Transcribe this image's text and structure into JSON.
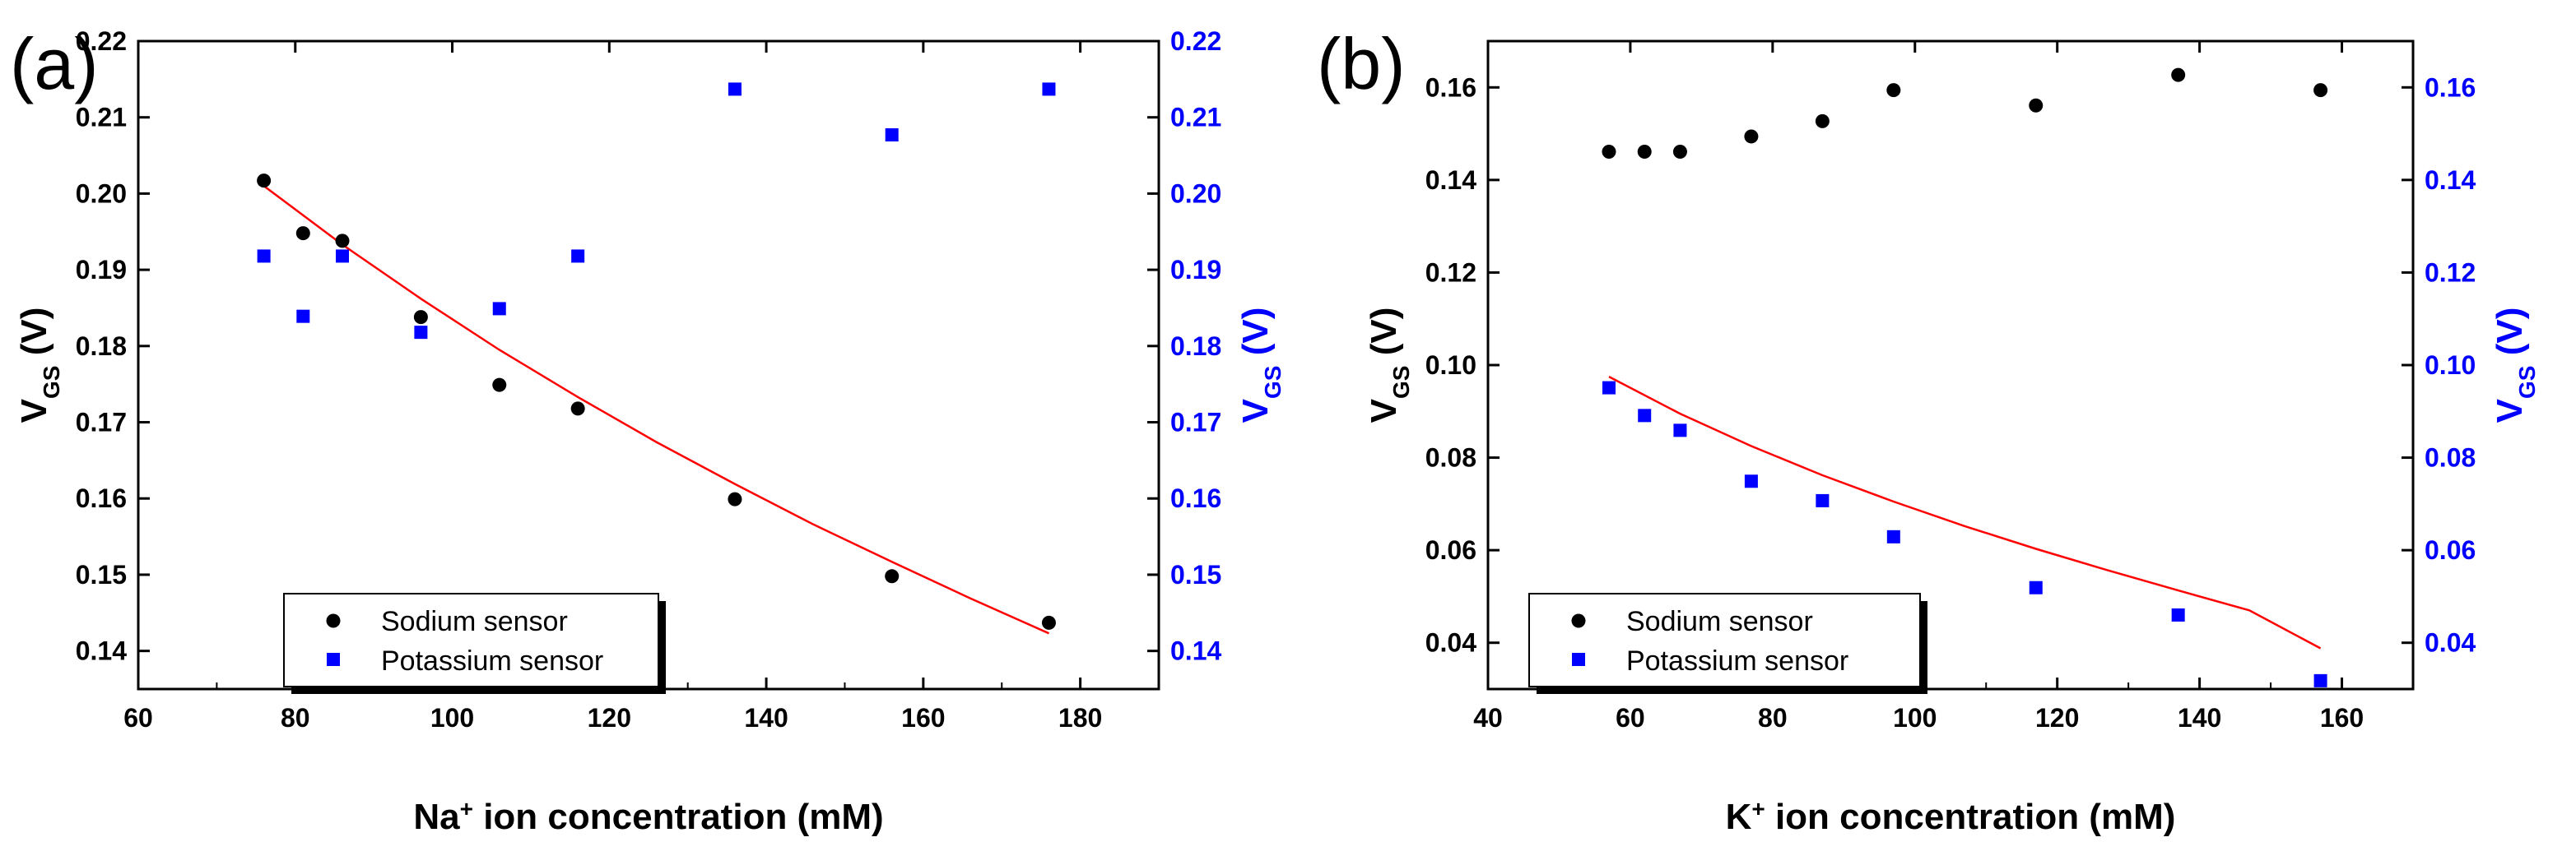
{
  "colors": {
    "black": "#000000",
    "blue": "#0000ff",
    "fit": "#ff0000"
  },
  "chart_data": [
    {
      "panel": "(a)",
      "type": "scatter",
      "xlabel_symbol": "Na",
      "xlabel_sup": "+",
      "xlabel_rest": " ion concentration (mM)",
      "ylabel_main": "V",
      "ylabel_sub": "GS",
      "ylabel_unit": " (V)",
      "xlim": [
        60,
        190
      ],
      "xticks": [
        "60",
        "80",
        "100",
        "120",
        "140",
        "160",
        "180"
      ],
      "ylim_left": [
        0.135,
        0.22
      ],
      "yticks_left": [
        "0.14",
        "0.15",
        "0.16",
        "0.17",
        "0.18",
        "0.19",
        "0.20",
        "0.21",
        "0.22"
      ],
      "ylim_right": [
        0.135,
        0.22
      ],
      "yticks_right": [
        "0.14",
        "0.15",
        "0.16",
        "0.17",
        "0.18",
        "0.19",
        "0.20",
        "0.21",
        "0.22"
      ],
      "legend": [
        "Sodium sensor",
        "Potassium sensor"
      ],
      "series": [
        {
          "name": "Sodium sensor",
          "axis": "left",
          "marker": "circle",
          "color": "#000000",
          "x": [
            76,
            81,
            86,
            96,
            106,
            116,
            136,
            156,
            176
          ],
          "y": [
            0.2017,
            0.1948,
            0.1938,
            0.1838,
            0.1749,
            0.1718,
            0.1599,
            0.1498,
            0.1437
          ]
        },
        {
          "name": "Potassium sensor",
          "axis": "right",
          "marker": "square",
          "color": "#0000ff",
          "x": [
            76,
            81,
            86,
            96,
            106,
            116,
            136,
            156,
            176
          ],
          "y": [
            0.1918,
            0.1839,
            0.1918,
            0.1818,
            0.1849,
            0.1918,
            0.2137,
            0.2077,
            0.2137
          ]
        }
      ],
      "fit": {
        "series": "Sodium sensor",
        "axis": "left",
        "x_range": [
          76,
          176
        ],
        "x": [
          76,
          86,
          96,
          106,
          116,
          126,
          136,
          146,
          156,
          166,
          176
        ],
        "y": [
          0.201,
          0.1933,
          0.1862,
          0.1795,
          0.1733,
          0.1674,
          0.1619,
          0.1566,
          0.1517,
          0.1469,
          0.1423
        ]
      }
    },
    {
      "panel": "(b)",
      "type": "scatter",
      "xlabel_symbol": "K",
      "xlabel_sup": "+",
      "xlabel_rest": " ion concentration (mM)",
      "ylabel_main": "V",
      "ylabel_sub": "GS",
      "ylabel_unit": " (V)",
      "xlim": [
        40,
        170
      ],
      "xticks": [
        "40",
        "60",
        "80",
        "100",
        "120",
        "140",
        "160"
      ],
      "ylim_left": [
        0.03,
        0.17
      ],
      "yticks_left": [
        "0.04",
        "0.06",
        "0.08",
        "0.10",
        "0.12",
        "0.14",
        "0.16"
      ],
      "ylim_right": [
        0.03,
        0.17
      ],
      "yticks_right": [
        "0.04",
        "0.06",
        "0.08",
        "0.10",
        "0.12",
        "0.14",
        "0.16"
      ],
      "legend": [
        "Sodium sensor",
        "Potassium sensor"
      ],
      "series": [
        {
          "name": "Sodium sensor",
          "axis": "left",
          "marker": "circle",
          "color": "#000000",
          "x": [
            57,
            62,
            67,
            77,
            87,
            97,
            117,
            137,
            157
          ],
          "y": [
            0.1461,
            0.1461,
            0.1461,
            0.1494,
            0.1527,
            0.1594,
            0.1561,
            0.1627,
            0.1594
          ]
        },
        {
          "name": "Potassium sensor",
          "axis": "right",
          "marker": "square",
          "color": "#0000ff",
          "x": [
            57,
            62,
            67,
            77,
            87,
            97,
            117,
            137,
            157
          ],
          "y": [
            0.0951,
            0.0891,
            0.0859,
            0.0749,
            0.0707,
            0.0629,
            0.0519,
            0.046,
            0.0318
          ]
        }
      ],
      "fit": {
        "series": "Potassium sensor",
        "axis": "left",
        "x_range": [
          57,
          157
        ],
        "x": [
          57,
          67,
          77,
          87,
          97,
          107,
          117,
          127,
          137,
          147,
          157
        ],
        "y": [
          0.0975,
          0.0895,
          0.0825,
          0.0762,
          0.0705,
          0.0652,
          0.0603,
          0.0557,
          0.0513,
          0.047,
          0.0388
        ]
      }
    }
  ]
}
